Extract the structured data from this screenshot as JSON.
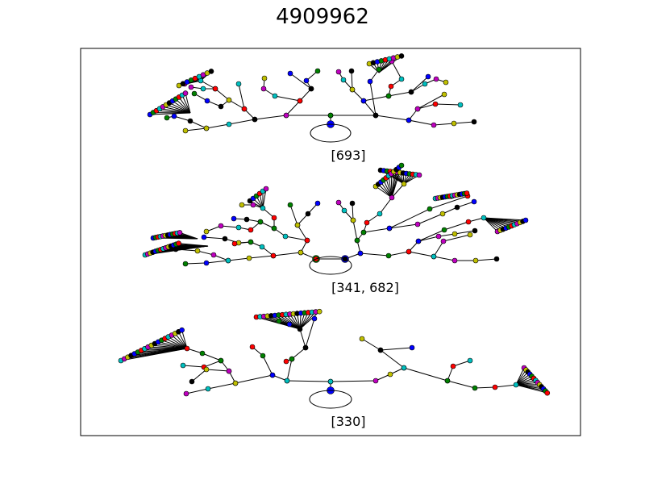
{
  "figure": {
    "title": "4909962"
  },
  "node_colors": [
    "#0000ff",
    "#008000",
    "#ff0000",
    "#00bfbf",
    "#bf00bf",
    "#bfbf00",
    "#000000"
  ],
  "edge_color": "#000000",
  "graphs": [
    {
      "label": "[693]"
    },
    {
      "label": "[341, 682]"
    },
    {
      "label": "[330]"
    }
  ]
}
